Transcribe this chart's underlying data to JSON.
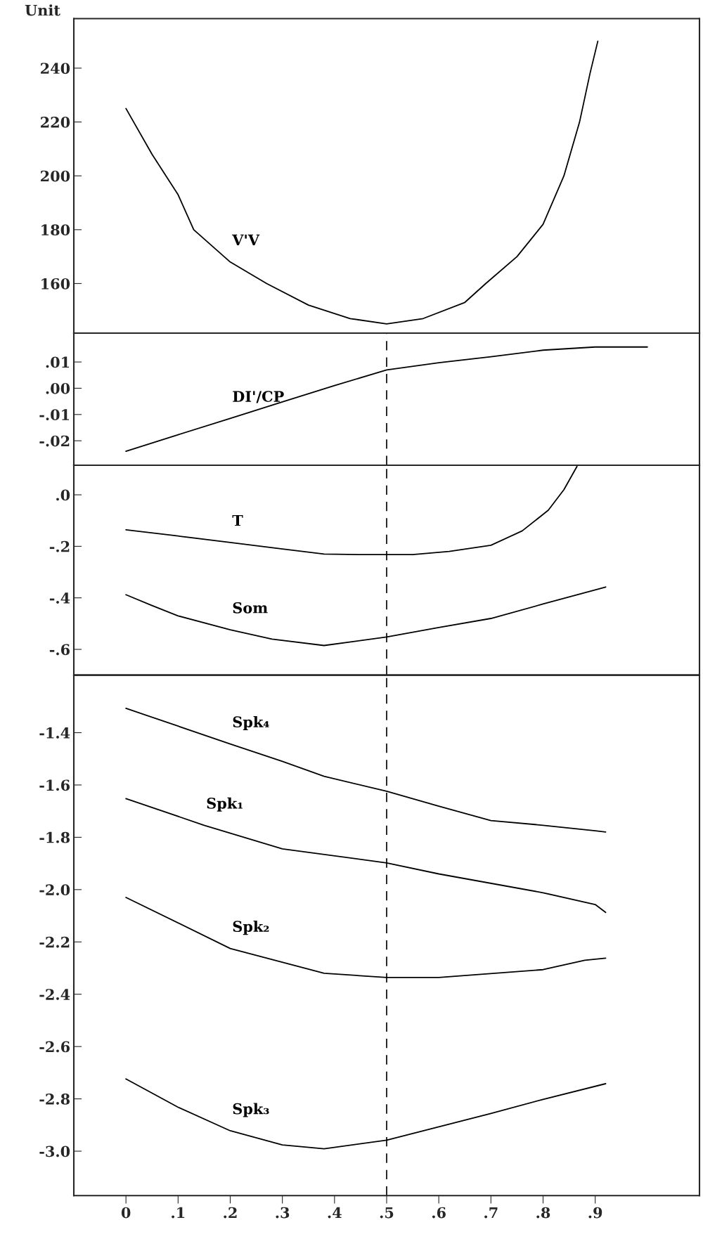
{
  "chart_data": [
    {
      "type": "line",
      "ylabel": "Unit",
      "xlim": [
        -0.1,
        1.1
      ],
      "ylim": [
        141.6,
        258.4
      ],
      "yticks": [
        160,
        180,
        200,
        220,
        240
      ],
      "tick_labels": "y",
      "grid": false,
      "series": [
        {
          "name": "V'V",
          "color": "#000000",
          "x": [
            0,
            0.05,
            0.1,
            0.13,
            0.2,
            0.27,
            0.35,
            0.43,
            0.5,
            0.57,
            0.65,
            0.69,
            0.75,
            0.8,
            0.84,
            0.87,
            0.89,
            0.905
          ],
          "values": [
            225,
            208,
            193,
            180,
            168,
            160,
            152,
            147,
            145,
            147,
            153,
            160,
            170,
            182,
            200,
            220,
            238,
            250
          ]
        }
      ]
    },
    {
      "type": "line",
      "xlim": [
        -0.1,
        1.1
      ],
      "ylim": [
        -0.0293,
        0.021
      ],
      "yticks": [
        {
          "value": 0.01,
          "label": ".01"
        },
        {
          "value": 0.0,
          "label": ".00"
        },
        {
          "value": -0.01,
          "label": "-.01"
        },
        {
          "value": -0.02,
          "label": "-.02"
        }
      ],
      "tick_labels": "y",
      "grid": false,
      "series": [
        {
          "name": "DI'/CP",
          "color": "#000000",
          "x": [
            0,
            0.1,
            0.2,
            0.3,
            0.4,
            0.5,
            0.6,
            0.7,
            0.8,
            0.9,
            1.0
          ],
          "values": [
            -0.024,
            -0.0177,
            -0.0115,
            -0.0052,
            0.001,
            0.007,
            0.0097,
            0.012,
            0.0145,
            0.0157,
            0.0157
          ]
        }
      ],
      "ref_lines": [
        {
          "axis": "x",
          "value": 0.5,
          "line_style": "dashed",
          "color": "#000000"
        }
      ]
    },
    {
      "type": "line",
      "xlim": [
        -0.1,
        1.1
      ],
      "ylim": [
        -0.7,
        0.115
      ],
      "yticks": [
        {
          "value": 0.0,
          "label": ".0"
        },
        {
          "value": -0.2,
          "label": "-.2"
        },
        {
          "value": -0.4,
          "label": "-.4"
        },
        {
          "value": -0.6,
          "label": "-.6"
        }
      ],
      "tick_labels": "y",
      "grid": false,
      "series": [
        {
          "name": "T",
          "color": "#000000",
          "x": [
            0,
            0.1,
            0.2,
            0.3,
            0.38,
            0.45,
            0.55,
            0.62,
            0.7,
            0.76,
            0.81,
            0.84,
            0.865
          ],
          "values": [
            -0.136,
            -0.16,
            -0.185,
            -0.21,
            -0.23,
            -0.232,
            -0.232,
            -0.22,
            -0.196,
            -0.14,
            -0.06,
            0.02,
            0.11
          ]
        },
        {
          "name": "Som",
          "color": "#000000",
          "x": [
            0,
            0.05,
            0.1,
            0.2,
            0.28,
            0.38,
            0.5,
            0.6,
            0.7,
            0.8,
            0.92
          ],
          "values": [
            -0.388,
            -0.43,
            -0.47,
            -0.524,
            -0.56,
            -0.585,
            -0.552,
            -0.515,
            -0.48,
            -0.424,
            -0.358
          ]
        }
      ],
      "ref_lines": [
        {
          "axis": "x",
          "value": 0.5,
          "line_style": "dashed",
          "color": "#000000"
        }
      ]
    },
    {
      "type": "line",
      "xlim": [
        -0.1,
        1.1
      ],
      "ylim": [
        -3.17,
        -1.18
      ],
      "xticks": [
        {
          "value": 0,
          "label": "0"
        },
        {
          "value": 0.1,
          "label": ".1"
        },
        {
          "value": 0.2,
          "label": ".2"
        },
        {
          "value": 0.3,
          "label": ".3"
        },
        {
          "value": 0.4,
          "label": ".4"
        },
        {
          "value": 0.5,
          "label": ".5"
        },
        {
          "value": 0.6,
          "label": ".6"
        },
        {
          "value": 0.7,
          "label": ".7"
        },
        {
          "value": 0.8,
          "label": ".8"
        },
        {
          "value": 0.9,
          "label": ".9"
        }
      ],
      "yticks": [
        {
          "value": -1.4,
          "label": "-1.4"
        },
        {
          "value": -1.6,
          "label": "-1.6"
        },
        {
          "value": -1.8,
          "label": "-1.8"
        },
        {
          "value": -2.0,
          "label": "-2.0"
        },
        {
          "value": -2.2,
          "label": "-2.2"
        },
        {
          "value": -2.4,
          "label": "-2.4"
        },
        {
          "value": -2.6,
          "label": "-2.6"
        },
        {
          "value": -2.8,
          "label": "-2.8"
        },
        {
          "value": -3.0,
          "label": "-3.0"
        }
      ],
      "grid": false,
      "series": [
        {
          "name": "Spk₄",
          "color": "#000000",
          "x": [
            0,
            0.1,
            0.2,
            0.3,
            0.38,
            0.5,
            0.6,
            0.7,
            0.8,
            0.9,
            0.92
          ],
          "values": [
            -1.307,
            -1.375,
            -1.443,
            -1.51,
            -1.567,
            -1.624,
            -1.681,
            -1.736,
            -1.754,
            -1.775,
            -1.78
          ]
        },
        {
          "name": "Spk₁",
          "color": "#000000",
          "x": [
            0,
            0.15,
            0.3,
            0.5,
            0.6,
            0.8,
            0.9,
            0.92
          ],
          "values": [
            -1.652,
            -1.754,
            -1.844,
            -1.898,
            -1.94,
            -2.012,
            -2.057,
            -2.087
          ]
        },
        {
          "name": "Spk₂",
          "color": "#000000",
          "x": [
            0,
            0.2,
            0.38,
            0.5,
            0.6,
            0.8,
            0.88,
            0.92
          ],
          "values": [
            -2.03,
            -2.225,
            -2.32,
            -2.336,
            -2.336,
            -2.306,
            -2.27,
            -2.262
          ]
        },
        {
          "name": "Spk₃",
          "color": "#000000",
          "x": [
            0,
            0.1,
            0.2,
            0.3,
            0.38,
            0.5,
            0.6,
            0.7,
            0.8,
            0.92
          ],
          "values": [
            -2.724,
            -2.832,
            -2.922,
            -2.976,
            -2.991,
            -2.958,
            -2.907,
            -2.856,
            -2.802,
            -2.742
          ]
        }
      ],
      "ref_lines": [
        {
          "axis": "x",
          "value": 0.5,
          "line_style": "dashed",
          "color": "#000000"
        }
      ]
    }
  ]
}
